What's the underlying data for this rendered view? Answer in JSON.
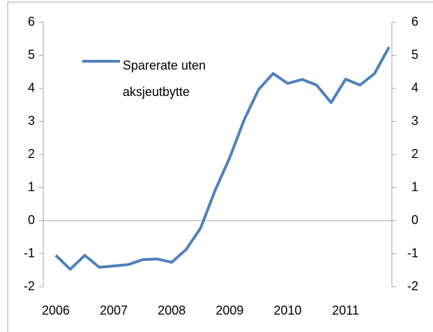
{
  "chart_data": {
    "type": "line",
    "categories": [
      "2006",
      null,
      null,
      null,
      "2007",
      null,
      null,
      null,
      "2008",
      null,
      null,
      null,
      "2009",
      null,
      null,
      null,
      "2010",
      null,
      null,
      null,
      "2011",
      null,
      null,
      null
    ],
    "series": [
      {
        "name": "Sparerate uten aksjeutbytte",
        "color": "#4f81bd",
        "values": [
          -1.05,
          -1.47,
          -1.05,
          -1.41,
          -1.37,
          -1.33,
          -1.18,
          -1.16,
          -1.26,
          -0.87,
          -0.22,
          0.92,
          1.9,
          3.05,
          3.97,
          4.45,
          4.15,
          4.27,
          4.1,
          3.57,
          4.28,
          4.1,
          4.45,
          5.25
        ]
      }
    ],
    "ylim": [
      -2,
      6
    ],
    "yticks": [
      -2,
      -1,
      0,
      1,
      2,
      3,
      4,
      5,
      6
    ],
    "y2lim": [
      -2,
      6
    ],
    "y2ticks": [
      -2,
      -1,
      0,
      1,
      2,
      3,
      4,
      5,
      6
    ],
    "legend": "upper left"
  }
}
